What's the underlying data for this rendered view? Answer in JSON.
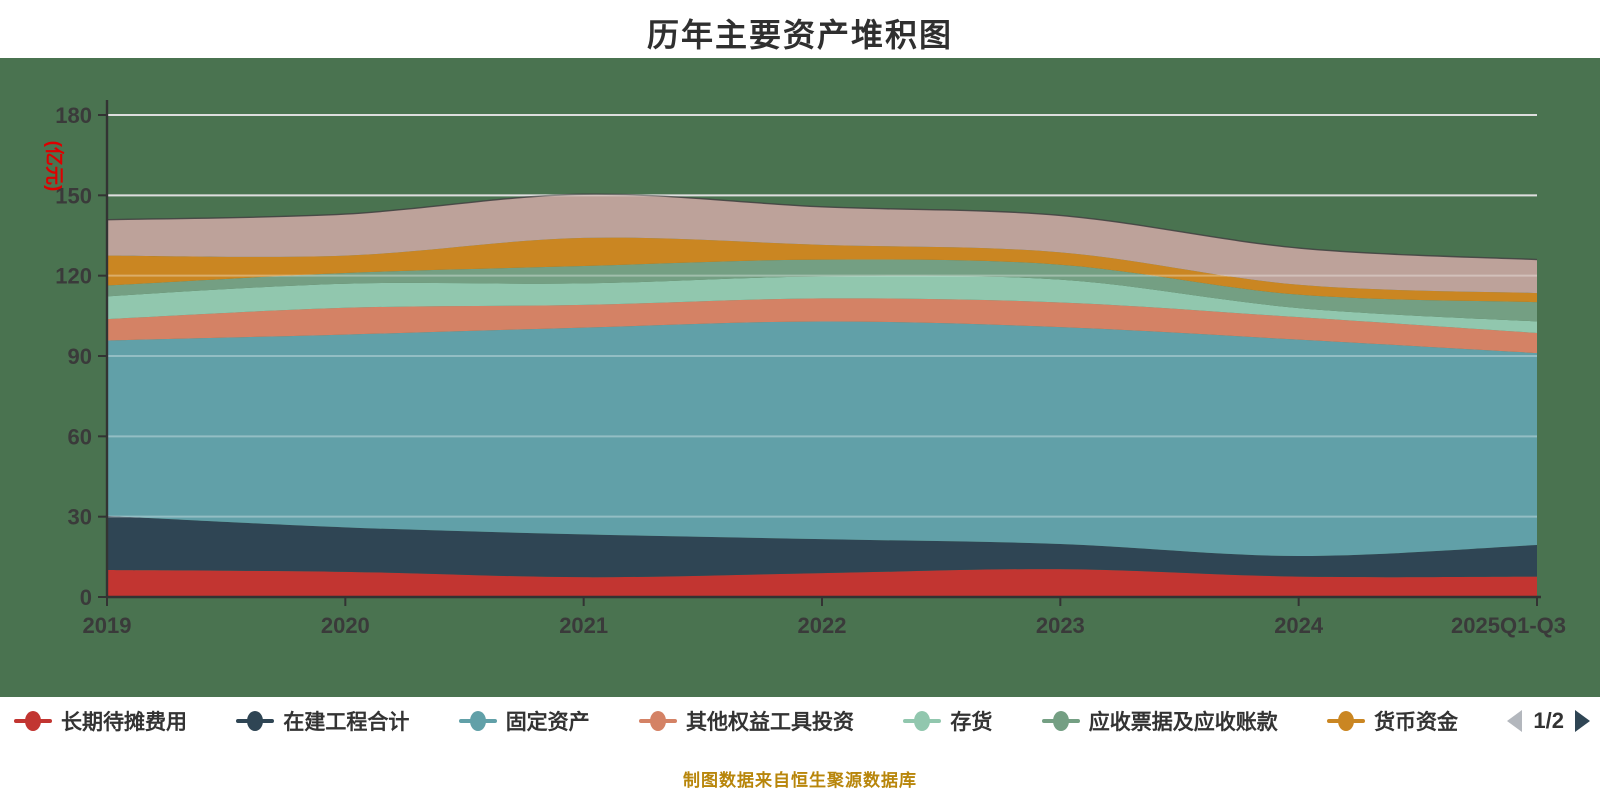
{
  "title": "历年主要资产堆积图",
  "footer": "制图数据来自恒生聚源数据库",
  "colors": {
    "page_background": "#ffffff",
    "panel_background": "#4A7350",
    "grid_line": "#cfcfcf",
    "grid_line_overlay": "rgba(255,255,255,0.32)",
    "axis_line": "#333333",
    "axis_label": "#3a3a3a",
    "y_axis_name": "#dd0000",
    "top_edge_stroke": "#3f3f3f",
    "legend_text": "#333333",
    "pager_prev": "#b3b7bd",
    "pager_next": "#2f4554",
    "footer_text": "#b8860b"
  },
  "legend": {
    "page_indicator": "1/2"
  },
  "chart_data": {
    "type": "area",
    "stacked": true,
    "smooth": true,
    "title": "历年主要资产堆积图",
    "ylabel": "(亿元)",
    "ylim": [
      0,
      180
    ],
    "y_interval": 30,
    "y_axis_labels": [
      "0",
      "30",
      "60",
      "90",
      "120",
      "150",
      "180"
    ],
    "grid": true,
    "legend_position": "bottom",
    "categories": [
      "2019",
      "2020",
      "2021",
      "2022",
      "2023",
      "2024",
      "2025Q1-Q3"
    ],
    "series": [
      {
        "name": "长期待摊费用",
        "color": "#c23531",
        "in_legend": true,
        "values": [
          10.1,
          9.4,
          7.4,
          8.9,
          10.4,
          7.6,
          7.6
        ]
      },
      {
        "name": "在建工程合计",
        "color": "#2f4554",
        "in_legend": true,
        "values": [
          20.2,
          16.6,
          16.0,
          12.7,
          9.4,
          7.7,
          11.8
        ]
      },
      {
        "name": "固定资产",
        "color": "#61a0a8",
        "in_legend": true,
        "values": [
          65.5,
          72.0,
          77.2,
          81.3,
          81.0,
          80.8,
          71.7
        ]
      },
      {
        "name": "其他权益工具投资",
        "color": "#d48265",
        "in_legend": true,
        "values": [
          8.0,
          10.0,
          8.5,
          8.6,
          9.2,
          8.4,
          7.5
        ]
      },
      {
        "name": "存货",
        "color": "#91c7ae",
        "in_legend": true,
        "values": [
          8.5,
          9.0,
          8.0,
          8.2,
          8.5,
          3.4,
          4.3
        ]
      },
      {
        "name": "应收票据及应收账款",
        "color": "#749f83",
        "in_legend": true,
        "values": [
          4.0,
          4.0,
          6.5,
          6.3,
          5.6,
          5.0,
          7.2
        ]
      },
      {
        "name": "货币资金",
        "color": "#ca8622",
        "in_legend": true,
        "values": [
          11.2,
          6.5,
          10.5,
          5.5,
          4.6,
          3.7,
          3.4
        ]
      },
      {
        "name": "",
        "color": "#bda29a",
        "in_legend": false,
        "values": [
          13.4,
          15.5,
          16.3,
          14.2,
          13.8,
          13.7,
          12.5
        ]
      }
    ],
    "totals": [
      140.9,
      143.0,
      150.4,
      145.7,
      142.5,
      130.3,
      126.0
    ]
  }
}
